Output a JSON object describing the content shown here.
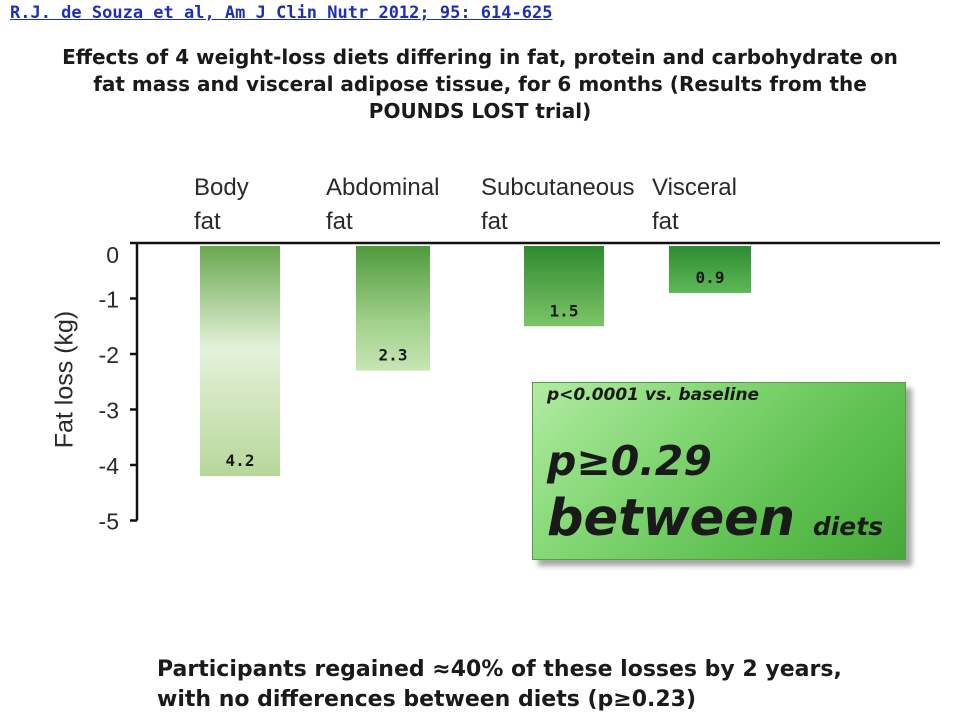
{
  "citation": "R.J. de Souza et al, Am J Clin Nutr 2012; 95: 614-625",
  "title_lines": [
    "Effects of 4 weight-loss diets differing in fat, protein and carbohydrate on",
    "fat mass and visceral adipose tissue, for 6 months (Results from the",
    "POUNDS LOST trial)"
  ],
  "chart_data": {
    "type": "bar",
    "categories": [
      "Body fat",
      "Abdominal fat",
      "Subcutaneous fat",
      "Visceral fat"
    ],
    "category_lines": [
      [
        "Body",
        "fat"
      ],
      [
        "Abdominal",
        "fat"
      ],
      [
        "Subcutaneous",
        "fat"
      ],
      [
        "Visceral",
        "fat"
      ]
    ],
    "values": [
      -4.2,
      -2.3,
      -1.5,
      -0.9
    ],
    "data_labels": [
      "4.2",
      "2.3",
      "1.5",
      "0.9"
    ],
    "ylabel": "Fat loss (kg)",
    "ylim": [
      -5,
      0
    ],
    "yticks": [
      0,
      -1,
      -2,
      -3,
      -4,
      -5
    ],
    "ytick_labels": [
      "0",
      "-1",
      "-2",
      "-3",
      "-4",
      "-5"
    ],
    "grid": false,
    "bar_colors": [
      "#a9cf8e",
      "#6fb05a",
      "#4ea048",
      "#3f9e3e"
    ]
  },
  "annotation": {
    "line1": "p<0.0001 vs. baseline",
    "line2": "p≥0.29",
    "line3_big": "between",
    "line3_small": "diets"
  },
  "footer_lines": [
    "Participants regained ≈40% of these losses by 2 years,",
    "with no differences between diets (p≥0.23)"
  ]
}
